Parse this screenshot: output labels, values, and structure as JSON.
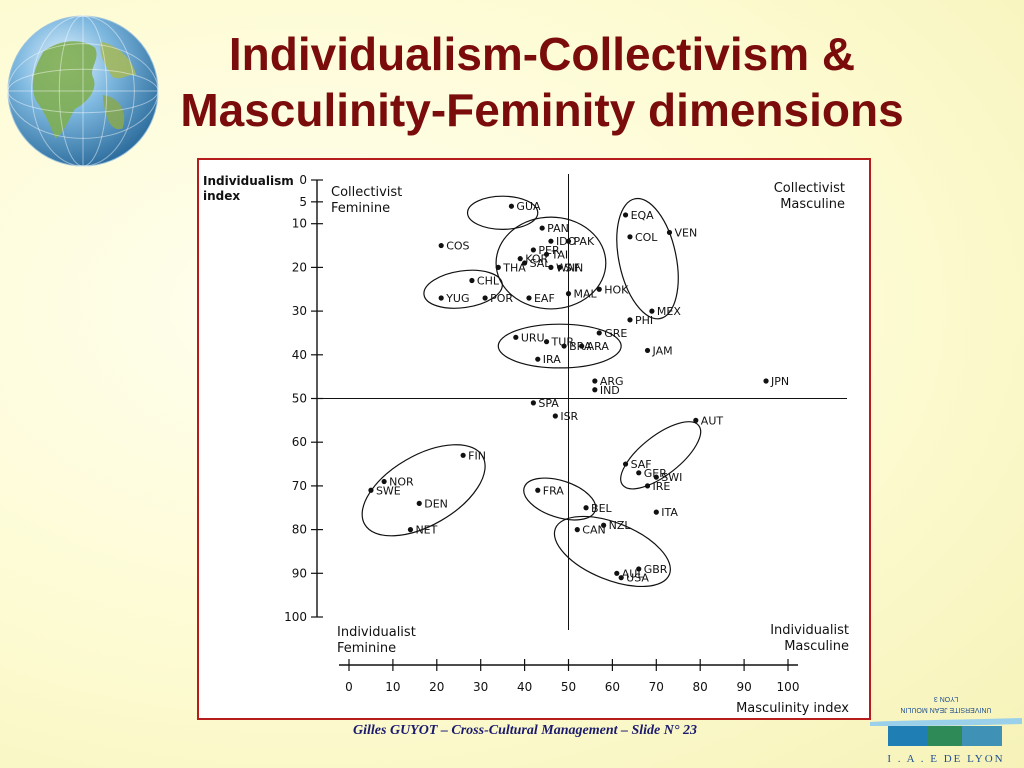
{
  "slide": {
    "title_line1": "Individualism-Collectivism &",
    "title_line2": "Masculinity-Feminity dimensions",
    "footer": "Gilles GUYOT – Cross-Cultural Management – Slide N° 23",
    "logo_text_top": "LYON 3",
    "logo_text_mid": "UNIVERSITE JEAN MOULIN",
    "logo_text_bottom": "I . A . E  DE LYON",
    "colors": {
      "title": "#7a0c0c",
      "frame_border": "#b71c1c",
      "footer": "#1a1a6e",
      "logo_blue": "#1f7fb5",
      "logo_green": "#2e8b57"
    },
    "icons": [
      "globe-icon",
      "university-logo"
    ]
  },
  "chart_data": {
    "type": "scatter",
    "title": "",
    "xlabel": "Masculinity index",
    "ylabel": "Individualism index",
    "xlim": [
      0,
      100
    ],
    "ylim": [
      0,
      100
    ],
    "y_inverted": true,
    "x_ticks": [
      "0",
      "10",
      "20",
      "30",
      "40",
      "50",
      "60",
      "70",
      "80",
      "90",
      "100"
    ],
    "y_ticks": [
      "0",
      "5",
      "10",
      "20",
      "30",
      "40",
      "50",
      "60",
      "70",
      "80",
      "90",
      "100"
    ],
    "reference_lines": {
      "x": 50,
      "y": 50
    },
    "quadrant_labels": [
      {
        "line1": "Collectivist",
        "line2": "Feminine",
        "placement": "top-left"
      },
      {
        "line1": "Collectivist",
        "line2": "Masculine",
        "placement": "top-right"
      },
      {
        "line1": "Individualist",
        "line2": "Feminine",
        "placement": "bottom-left"
      },
      {
        "line1": "Individualist",
        "line2": "Masculine",
        "placement": "bottom-right"
      }
    ],
    "points": [
      {
        "label": "GUA",
        "x": 37,
        "y": 6
      },
      {
        "label": "PAN",
        "x": 44,
        "y": 11
      },
      {
        "label": "EQA",
        "x": 63,
        "y": 8
      },
      {
        "label": "VEN",
        "x": 73,
        "y": 12
      },
      {
        "label": "COL",
        "x": 64,
        "y": 13
      },
      {
        "label": "COS",
        "x": 21,
        "y": 15
      },
      {
        "label": "IDO",
        "x": 46,
        "y": 14
      },
      {
        "label": "PAK",
        "x": 50,
        "y": 14
      },
      {
        "label": "PER",
        "x": 42,
        "y": 16
      },
      {
        "label": "TAI",
        "x": 45,
        "y": 17
      },
      {
        "label": "THA",
        "x": 34,
        "y": 20
      },
      {
        "label": "SAL",
        "x": 40,
        "y": 19
      },
      {
        "label": "SIN",
        "x": 48,
        "y": 20
      },
      {
        "label": "WAF",
        "x": 46,
        "y": 20
      },
      {
        "label": "HOK",
        "x": 57,
        "y": 25
      },
      {
        "label": "KOR",
        "x": 39,
        "y": 18
      },
      {
        "label": "EAF",
        "x": 41,
        "y": 27
      },
      {
        "label": "MAL",
        "x": 50,
        "y": 26
      },
      {
        "label": "MEX",
        "x": 69,
        "y": 30
      },
      {
        "label": "CHL",
        "x": 28,
        "y": 23
      },
      {
        "label": "POR",
        "x": 31,
        "y": 27
      },
      {
        "label": "YUG",
        "x": 21,
        "y": 27
      },
      {
        "label": "PHI",
        "x": 64,
        "y": 32
      },
      {
        "label": "GRE",
        "x": 57,
        "y": 35
      },
      {
        "label": "URU",
        "x": 38,
        "y": 36
      },
      {
        "label": "TUR",
        "x": 45,
        "y": 37
      },
      {
        "label": "ARA",
        "x": 53,
        "y": 38
      },
      {
        "label": "JAM",
        "x": 68,
        "y": 39
      },
      {
        "label": "IRA",
        "x": 43,
        "y": 41
      },
      {
        "label": "BRA",
        "x": 49,
        "y": 38
      },
      {
        "label": "ARG",
        "x": 56,
        "y": 46
      },
      {
        "label": "IND",
        "x": 56,
        "y": 48
      },
      {
        "label": "JPN",
        "x": 95,
        "y": 46
      },
      {
        "label": "SPA",
        "x": 42,
        "y": 51
      },
      {
        "label": "ISR",
        "x": 47,
        "y": 54
      },
      {
        "label": "AUT",
        "x": 79,
        "y": 55
      },
      {
        "label": "FIN",
        "x": 26,
        "y": 63
      },
      {
        "label": "SAF",
        "x": 63,
        "y": 65
      },
      {
        "label": "GER",
        "x": 66,
        "y": 67
      },
      {
        "label": "SWI",
        "x": 70,
        "y": 68
      },
      {
        "label": "IRE",
        "x": 68,
        "y": 70
      },
      {
        "label": "NOR",
        "x": 8,
        "y": 69
      },
      {
        "label": "SWE",
        "x": 5,
        "y": 71
      },
      {
        "label": "DEN",
        "x": 16,
        "y": 74
      },
      {
        "label": "FRA",
        "x": 43,
        "y": 71
      },
      {
        "label": "BEL",
        "x": 54,
        "y": 75
      },
      {
        "label": "ITA",
        "x": 70,
        "y": 76
      },
      {
        "label": "NET",
        "x": 14,
        "y": 80
      },
      {
        "label": "CAN",
        "x": 52,
        "y": 80
      },
      {
        "label": "NZL",
        "x": 58,
        "y": 79
      },
      {
        "label": "AUL",
        "x": 61,
        "y": 90
      },
      {
        "label": "GBR",
        "x": 66,
        "y": 89
      },
      {
        "label": "USA",
        "x": 62,
        "y": 91
      }
    ]
  }
}
